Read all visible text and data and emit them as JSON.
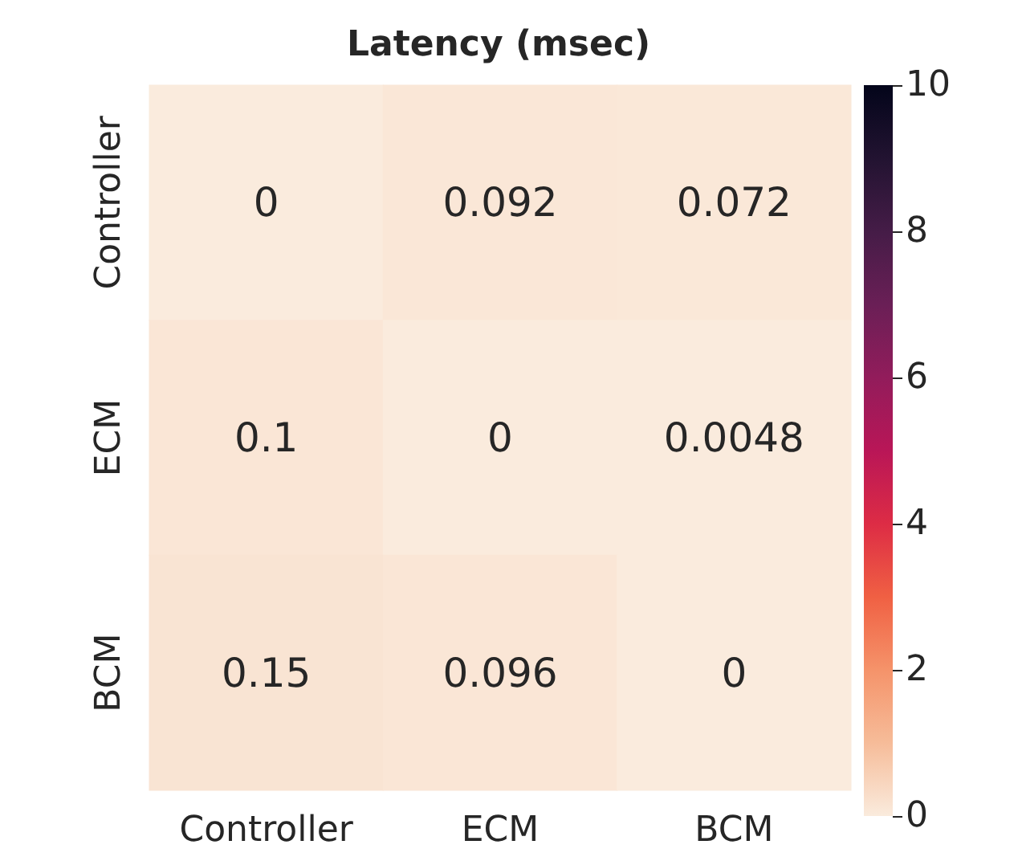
{
  "chart_data": {
    "type": "heatmap",
    "title": "Latency (msec)",
    "categories": [
      "Controller",
      "ECM",
      "BCM"
    ],
    "y_categories": [
      "Controller",
      "ECM",
      "BCM"
    ],
    "cells": [
      [
        0,
        0.092,
        0.072
      ],
      [
        0.1,
        0,
        0.0048
      ],
      [
        0.15,
        0.096,
        0
      ]
    ],
    "data_labels": true,
    "clim": [
      0,
      10
    ],
    "cticks": [
      0,
      2,
      4,
      6,
      8,
      10
    ]
  }
}
